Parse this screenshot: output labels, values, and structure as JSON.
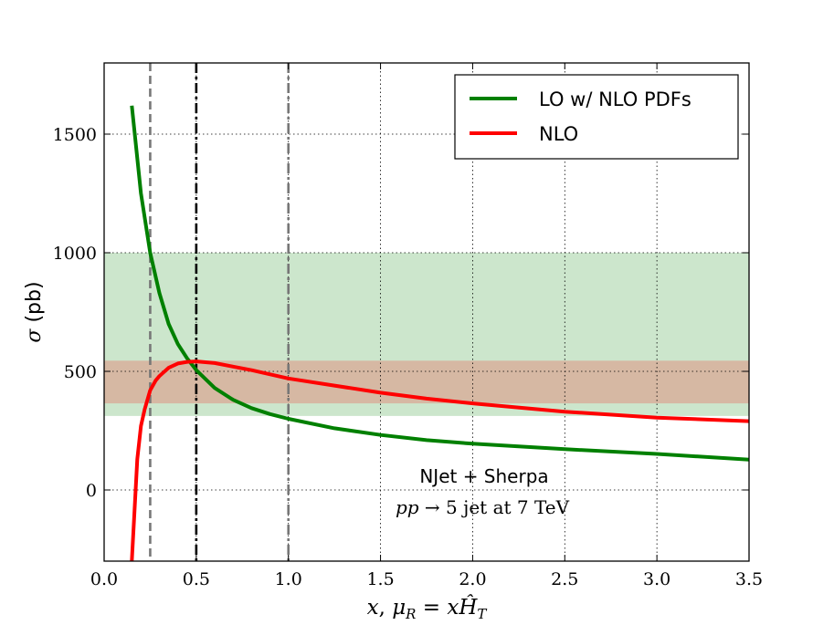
{
  "chart_data": {
    "type": "line",
    "xlabel": "x, μ_R = xĤ_T",
    "ylabel": "σ (pb)",
    "xlim": [
      0.0,
      3.5
    ],
    "ylim": [
      -300,
      1800
    ],
    "xticks": [
      0.0,
      0.5,
      1.0,
      1.5,
      2.0,
      2.5,
      3.0,
      3.5
    ],
    "xtick_labels": [
      "0.0",
      "0.5",
      "1.0",
      "1.5",
      "2.0",
      "2.5",
      "3.0",
      "3.5"
    ],
    "yticks": [
      0,
      500,
      1000,
      1500
    ],
    "ytick_labels": [
      "0",
      "500",
      "1000",
      "1500"
    ],
    "grid": true,
    "legend_position": "top-right",
    "series": [
      {
        "name": "LO w/ NLO PDFs",
        "color": "#008000",
        "x": [
          0.15,
          0.2,
          0.25,
          0.3,
          0.35,
          0.4,
          0.45,
          0.5,
          0.6,
          0.7,
          0.8,
          0.9,
          1.0,
          1.25,
          1.5,
          1.75,
          2.0,
          2.5,
          3.0,
          3.5
        ],
        "y": [
          1620,
          1250,
          1000,
          830,
          700,
          615,
          555,
          505,
          430,
          380,
          345,
          320,
          300,
          260,
          232,
          210,
          195,
          172,
          152,
          128
        ]
      },
      {
        "name": "NLO",
        "color": "#ff0000",
        "x": [
          0.15,
          0.18,
          0.2,
          0.22,
          0.25,
          0.28,
          0.3,
          0.35,
          0.4,
          0.45,
          0.5,
          0.6,
          0.7,
          0.8,
          1.0,
          1.25,
          1.5,
          1.75,
          2.0,
          2.5,
          3.0,
          3.5
        ],
        "y": [
          -300,
          130,
          270,
          340,
          420,
          462,
          480,
          515,
          533,
          540,
          542,
          535,
          520,
          505,
          470,
          440,
          410,
          385,
          365,
          330,
          305,
          290
        ]
      }
    ],
    "bands": [
      {
        "series": "LO w/ NLO PDFs",
        "color": "#008000",
        "opacity": 0.2,
        "ymin": 312,
        "ymax": 1000
      },
      {
        "series": "NLO",
        "color": "#ff0000",
        "opacity": 0.2,
        "ymin": 365,
        "ymax": 545
      }
    ],
    "vlines": [
      {
        "x": 0.25,
        "color": "#777777",
        "style": "dashed"
      },
      {
        "x": 0.5,
        "color": "#000000",
        "style": "dashdot"
      },
      {
        "x": 1.0,
        "color": "#777777",
        "style": "dashdot"
      }
    ],
    "annotations": [
      "NJet + Sherpa",
      "pp → 5 jet at 7 TeV"
    ]
  }
}
